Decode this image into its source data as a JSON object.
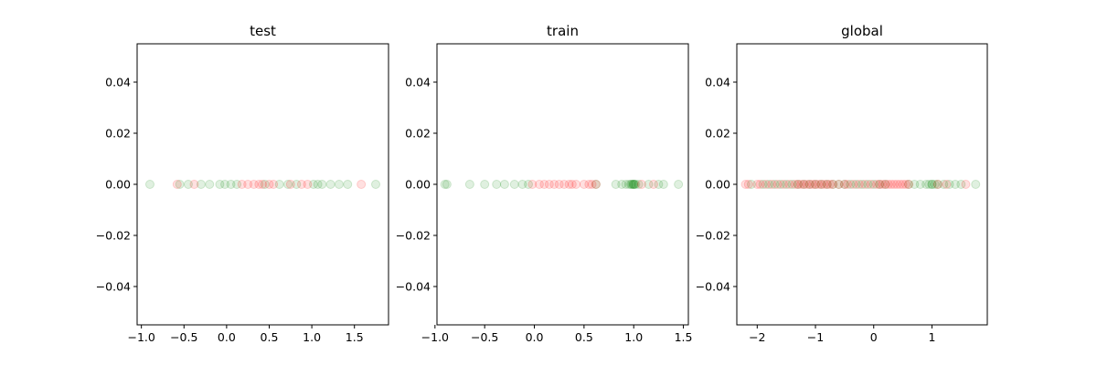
{
  "chart_data": [
    {
      "type": "scatter",
      "title": "test",
      "xlabel": "",
      "ylabel": "",
      "xlim": [
        -1.05,
        1.9
      ],
      "ylim": [
        -0.055,
        0.055
      ],
      "xticks": [
        "-1.0",
        "-0.5",
        "0.0",
        "0.5",
        "1.0",
        "1.5"
      ],
      "xtick_values": [
        -1.0,
        -0.5,
        0.0,
        0.5,
        1.0,
        1.5
      ],
      "yticks": [
        "-0.04",
        "-0.02",
        "0.00",
        "0.02",
        "0.04"
      ],
      "ytick_values": [
        -0.04,
        -0.02,
        0.0,
        0.02,
        0.04
      ],
      "grid": false,
      "series": [
        {
          "color": "#008000",
          "alpha": 0.12,
          "x": [
            -0.9,
            -0.55,
            -0.45,
            -0.3,
            -0.2,
            -0.08,
            -0.02,
            0.05,
            0.12,
            0.45,
            0.62,
            0.72,
            0.82,
            1.02,
            1.07,
            1.12,
            1.22,
            1.32,
            1.42,
            1.75
          ],
          "y": [
            0,
            0,
            0,
            0,
            0,
            0,
            0,
            0,
            0,
            0,
            0,
            0,
            0,
            0,
            0,
            0,
            0,
            0,
            0,
            0
          ]
        },
        {
          "color": "#ff0000",
          "alpha": 0.12,
          "x": [
            -0.58,
            -0.38,
            0.18,
            0.25,
            0.32,
            0.38,
            0.42,
            0.5,
            0.55,
            0.75,
            0.88,
            0.95,
            1.58
          ],
          "y": [
            0,
            0,
            0,
            0,
            0,
            0,
            0,
            0,
            0,
            0,
            0,
            0,
            0
          ]
        }
      ]
    },
    {
      "type": "scatter",
      "title": "train",
      "xlabel": "",
      "ylabel": "",
      "xlim": [
        -0.98,
        1.55
      ],
      "ylim": [
        -0.055,
        0.055
      ],
      "xticks": [
        "-1.0",
        "-0.5",
        "0.0",
        "0.5",
        "1.0",
        "1.5"
      ],
      "xtick_values": [
        -1.0,
        -0.5,
        0.0,
        0.5,
        1.0,
        1.5
      ],
      "yticks": [
        "-0.04",
        "-0.02",
        "0.00",
        "0.02",
        "0.04"
      ],
      "ytick_values": [
        -0.04,
        -0.02,
        0.0,
        0.02,
        0.04
      ],
      "grid": false,
      "series": [
        {
          "color": "#008000",
          "alpha": 0.12,
          "x": [
            -0.9,
            -0.88,
            -0.65,
            -0.5,
            -0.38,
            -0.3,
            -0.2,
            -0.12,
            -0.06,
            0.62,
            0.82,
            0.88,
            0.92,
            0.95,
            0.97,
            0.98,
            0.99,
            1.0,
            1.0,
            1.01,
            1.02,
            1.05,
            1.15,
            1.25,
            1.3,
            1.45
          ],
          "y": [
            0,
            0,
            0,
            0,
            0,
            0,
            0,
            0,
            0,
            0,
            0,
            0,
            0,
            0,
            0,
            0,
            0,
            0,
            0,
            0,
            0,
            0,
            0,
            0,
            0,
            0
          ]
        },
        {
          "color": "#ff0000",
          "alpha": 0.12,
          "x": [
            -0.02,
            0.05,
            0.1,
            0.15,
            0.2,
            0.25,
            0.3,
            0.35,
            0.38,
            0.42,
            0.5,
            0.55,
            0.58,
            0.62,
            1.08,
            1.2
          ],
          "y": [
            0,
            0,
            0,
            0,
            0,
            0,
            0,
            0,
            0,
            0,
            0,
            0,
            0,
            0,
            0,
            0
          ]
        }
      ]
    },
    {
      "type": "scatter",
      "title": "global",
      "xlabel": "",
      "ylabel": "",
      "xlim": [
        -2.35,
        1.95
      ],
      "ylim": [
        -0.055,
        0.055
      ],
      "xticks": [
        "-2",
        "-1",
        "0",
        "1"
      ],
      "xtick_values": [
        -2,
        -1,
        0,
        1
      ],
      "yticks": [
        "-0.04",
        "-0.02",
        "0.00",
        "0.02",
        "0.04"
      ],
      "ytick_values": [
        -0.04,
        -0.02,
        0.0,
        0.02,
        0.04
      ],
      "grid": false,
      "series": [
        {
          "color": "#008000",
          "alpha": 0.12,
          "x": [
            -2.1,
            -1.9,
            -1.8,
            -1.7,
            -1.6,
            -1.5,
            -1.4,
            -1.3,
            -1.2,
            -1.1,
            -1.0,
            -0.9,
            -0.8,
            -0.7,
            -0.6,
            -0.5,
            -0.4,
            -0.3,
            -0.2,
            -0.1,
            0.0,
            0.1,
            0.2,
            0.6,
            0.7,
            0.8,
            0.9,
            0.95,
            1.0,
            1.0,
            1.05,
            1.1,
            1.2,
            1.3,
            1.4,
            1.5,
            1.75
          ],
          "y": [
            0,
            0,
            0,
            0,
            0,
            0,
            0,
            0,
            0,
            0,
            0,
            0,
            0,
            0,
            0,
            0,
            0,
            0,
            0,
            0,
            0,
            0,
            0,
            0,
            0,
            0,
            0,
            0,
            0,
            0,
            0,
            0,
            0,
            0,
            0,
            0,
            0
          ]
        },
        {
          "color": "#ff0000",
          "alpha": 0.12,
          "x": [
            -2.2,
            -2.15,
            -2.0,
            -1.95,
            -1.85,
            -1.75,
            -1.65,
            -1.55,
            -1.45,
            -1.35,
            -1.3,
            -1.25,
            -1.2,
            -1.15,
            -1.1,
            -1.05,
            -1.0,
            -0.95,
            -0.9,
            -0.85,
            -0.8,
            -0.75,
            -0.7,
            -0.6,
            -0.5,
            -0.45,
            -0.35,
            -0.25,
            -0.15,
            -0.05,
            0.05,
            0.1,
            0.15,
            0.2,
            0.25,
            0.3,
            0.35,
            0.4,
            0.45,
            0.5,
            0.55,
            0.6,
            1.1,
            1.25,
            1.58
          ],
          "y": [
            0,
            0,
            0,
            0,
            0,
            0,
            0,
            0,
            0,
            0,
            0,
            0,
            0,
            0,
            0,
            0,
            0,
            0,
            0,
            0,
            0,
            0,
            0,
            0,
            0,
            0,
            0,
            0,
            0,
            0,
            0,
            0,
            0,
            0,
            0,
            0,
            0,
            0,
            0,
            0,
            0,
            0,
            0,
            0,
            0
          ]
        }
      ]
    }
  ]
}
